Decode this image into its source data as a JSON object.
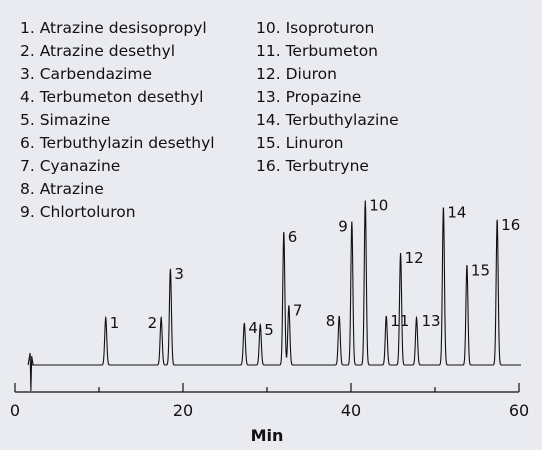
{
  "chart_data": {
    "type": "line",
    "xlabel": "Min",
    "ylabel": "",
    "xlim": [
      0,
      60
    ],
    "x_ticks": [
      "0",
      "20",
      "40",
      "60"
    ],
    "grid": false,
    "legend": {
      "placement": "top",
      "entries": [
        "1. Atrazine desisopropyl",
        "2. Atrazine desethyl",
        "3. Carbendazime",
        "4. Terbumeton desethyl",
        "5. Simazine",
        "6. Terbuthylazin desethyl",
        "7. Cyanazine",
        "8. Atrazine",
        "9. Chlortoluron",
        "10. Isoproturon",
        "11. Terbumeton",
        "12. Diuron",
        "13. Propazine",
        "14. Terbuthylazine",
        "15. Linuron",
        "16. Terbutryne"
      ]
    },
    "peaks": [
      {
        "label": "1",
        "time": 10.8,
        "height": 0.27
      },
      {
        "label": "2",
        "time": 17.4,
        "height": 0.27
      },
      {
        "label": "3",
        "time": 18.5,
        "height": 0.55
      },
      {
        "label": "4",
        "time": 27.3,
        "height": 0.24
      },
      {
        "label": "5",
        "time": 29.2,
        "height": 0.23
      },
      {
        "label": "6",
        "time": 32.0,
        "height": 0.76
      },
      {
        "label": "7",
        "time": 32.6,
        "height": 0.34
      },
      {
        "label": "8",
        "time": 38.6,
        "height": 0.28
      },
      {
        "label": "9",
        "time": 40.1,
        "height": 0.82
      },
      {
        "label": "10",
        "time": 41.7,
        "height": 0.94
      },
      {
        "label": "11",
        "time": 44.2,
        "height": 0.28
      },
      {
        "label": "12",
        "time": 45.9,
        "height": 0.64
      },
      {
        "label": "13",
        "time": 47.8,
        "height": 0.27
      },
      {
        "label": "14",
        "time": 51.0,
        "height": 0.9
      },
      {
        "label": "15",
        "time": 53.8,
        "height": 0.57
      },
      {
        "label": "16",
        "time": 57.4,
        "height": 0.83
      }
    ]
  }
}
